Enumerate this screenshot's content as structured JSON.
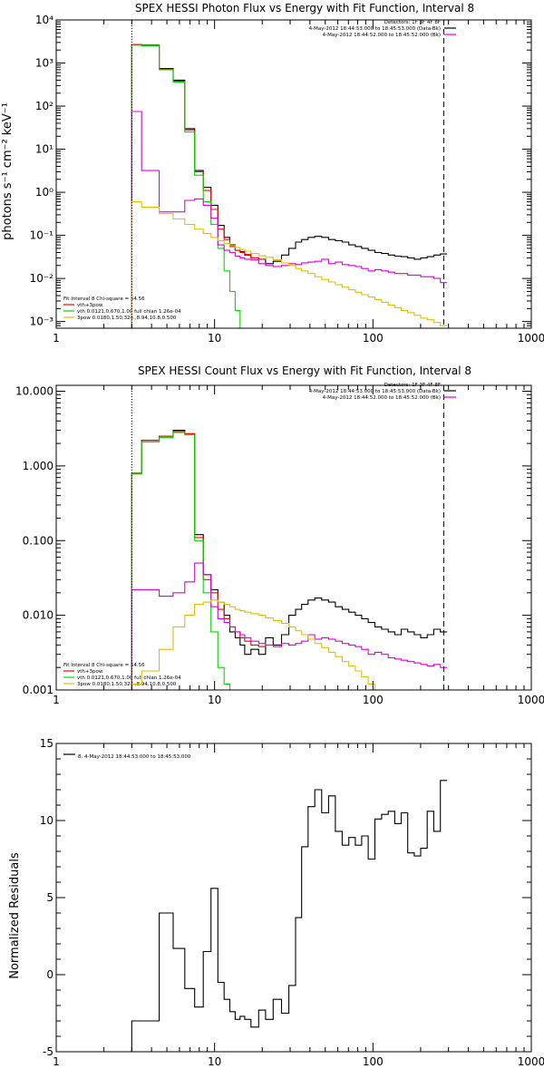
{
  "colors": {
    "data": "#000000",
    "total": "#ff0000",
    "vth": "#00dd00",
    "pow": "#e0c000",
    "bkg": "#dd00dd"
  },
  "chart_data": [
    {
      "type": "line",
      "title": "SPEX HESSI Photon Flux vs Energy with Fit Function, Interval 8",
      "ylabel": "photons s⁻¹ cm⁻² keV⁻¹",
      "xlabel": "",
      "xscale": "log",
      "yscale": "log",
      "xlim": [
        1,
        1000
      ],
      "ylim": [
        0.0007,
        10000
      ],
      "xticks": [
        1,
        10,
        100,
        1000
      ],
      "xticklabels": [
        "1",
        "10",
        "100",
        "1000"
      ],
      "yticks": [
        0.001,
        0.01,
        0.1,
        1,
        10,
        100,
        1000,
        10000
      ],
      "yticklabels": [
        "10⁻³",
        "10⁻²",
        "10⁻¹",
        "10⁰",
        "10¹",
        "10²",
        "10³",
        "10⁴"
      ],
      "vlines": [
        {
          "x": 3,
          "style": "dotted"
        },
        {
          "x": 280,
          "style": "dashed"
        }
      ],
      "legend_upper": {
        "header": "Detectors: 1F 3F 4F 8F",
        "entries": [
          {
            "text": "4-May-2012 18:44:53.000 to 18:45:53.000 (Data-Bk)",
            "color": "#000000"
          },
          {
            "text": "4-May-2012 18:44:52.000 to 18:45:52.000 (Bk)",
            "color": "#dd00dd"
          }
        ]
      },
      "legend_lower": {
        "header": "Fit Interval 8   Chi-square = 54.56",
        "entries": [
          {
            "text": "vth+3pow",
            "color": "#ff0000"
          },
          {
            "text": "vth 0.0121,0.670,1.00  full chian 1.26e-04",
            "color": "#00dd00"
          },
          {
            "text": "3pow 0.0180,1.50,324.,8.94,10.8,0.500",
            "color": "#e0c000"
          }
        ]
      },
      "series": [
        {
          "color": "#000000",
          "x": [
            3,
            4,
            5,
            6,
            7,
            8,
            9,
            10,
            11,
            12,
            13,
            14,
            15,
            16,
            18,
            20,
            22,
            25,
            28,
            31,
            34,
            37,
            41,
            45,
            50,
            55,
            61,
            67,
            74,
            81,
            89,
            98,
            108,
            119,
            131,
            144,
            158,
            174,
            191,
            210,
            231,
            254,
            280
          ],
          "y": [
            2700,
            2600,
            750,
            400,
            30,
            3.2,
            1.3,
            0.5,
            0.17,
            0.09,
            0.06,
            0.045,
            0.042,
            0.035,
            0.03,
            0.028,
            0.022,
            0.025,
            0.035,
            0.05,
            0.07,
            0.08,
            0.09,
            0.095,
            0.09,
            0.08,
            0.075,
            0.07,
            0.06,
            0.055,
            0.05,
            0.045,
            0.04,
            0.038,
            0.035,
            0.033,
            0.032,
            0.03,
            0.028,
            0.03,
            0.032,
            0.035,
            0.037
          ]
        },
        {
          "color": "#ff0000",
          "x": [
            3,
            4,
            5,
            6,
            7,
            8,
            9,
            10,
            11,
            12,
            13,
            14,
            15,
            16,
            18,
            20
          ],
          "y": [
            2700,
            2600,
            720,
            380,
            28,
            3.0,
            1.1,
            0.4,
            0.14,
            0.08,
            0.055,
            0.045,
            0.04,
            0.036,
            0.03,
            0.028
          ]
        },
        {
          "color": "#00dd00",
          "x": [
            3,
            4,
            5,
            6,
            7,
            8,
            9,
            10,
            11,
            12,
            13,
            14,
            15
          ],
          "y": [
            2600,
            2500,
            700,
            360,
            25,
            2.5,
            0.6,
            0.18,
            0.05,
            0.015,
            0.005,
            0.0018,
            0.0007
          ]
        },
        {
          "color": "#dd00dd",
          "x": [
            3,
            4,
            5,
            6,
            7,
            8,
            9,
            10,
            11,
            12,
            13,
            14,
            15,
            16,
            18,
            20,
            22,
            25,
            28,
            31,
            34,
            37,
            41,
            45,
            50,
            55,
            61,
            67,
            74,
            81,
            89,
            98,
            108,
            119,
            131,
            144,
            158,
            174,
            191,
            210,
            231,
            254,
            280
          ],
          "y": [
            75,
            3.2,
            0.35,
            0.35,
            0.65,
            0.7,
            0.5,
            0.25,
            0.06,
            0.045,
            0.04,
            0.033,
            0.03,
            0.028,
            0.027,
            0.022,
            0.02,
            0.019,
            0.02,
            0.022,
            0.021,
            0.023,
            0.024,
            0.025,
            0.028,
            0.022,
            0.024,
            0.021,
            0.02,
            0.019,
            0.017,
            0.015,
            0.016,
            0.015,
            0.014,
            0.013,
            0.013,
            0.012,
            0.012,
            0.011,
            0.011,
            0.01,
            0.008
          ]
        },
        {
          "color": "#e0c000",
          "x": [
            3,
            4,
            5,
            6,
            7,
            8,
            9,
            10,
            11,
            12,
            13,
            14,
            15,
            16,
            18,
            20,
            22,
            25,
            28,
            31,
            34,
            37,
            41,
            45,
            50,
            55,
            61,
            67,
            74,
            81,
            89,
            98,
            108,
            119,
            131,
            144,
            158,
            174,
            191,
            210,
            231,
            254,
            280
          ],
          "y": [
            0.6,
            0.45,
            0.32,
            0.24,
            0.18,
            0.14,
            0.11,
            0.09,
            0.075,
            0.065,
            0.058,
            0.052,
            0.047,
            0.043,
            0.038,
            0.034,
            0.031,
            0.027,
            0.023,
            0.02,
            0.017,
            0.015,
            0.013,
            0.011,
            0.0095,
            0.0083,
            0.0072,
            0.0063,
            0.0055,
            0.0048,
            0.0042,
            0.0037,
            0.0032,
            0.0028,
            0.0024,
            0.0021,
            0.0018,
            0.0016,
            0.0014,
            0.0012,
            0.0011,
            0.00095,
            0.0008
          ]
        }
      ]
    },
    {
      "type": "line",
      "title": "SPEX HESSI Count Flux vs Energy with Fit Function, Interval 8",
      "xlabel": "",
      "ylabel": "",
      "xscale": "log",
      "yscale": "log",
      "xlim": [
        1,
        1000
      ],
      "ylim": [
        0.001,
        12
      ],
      "xticks": [
        1,
        10,
        100,
        1000
      ],
      "xticklabels": [
        "1",
        "10",
        "100",
        "1000"
      ],
      "yticks": [
        0.001,
        0.01,
        0.1,
        1,
        10
      ],
      "yticklabels": [
        "0.001",
        "0.010",
        "0.100",
        "1.000",
        "10.000"
      ],
      "vlines": [
        {
          "x": 3,
          "style": "dotted"
        },
        {
          "x": 280,
          "style": "dashed"
        }
      ],
      "legend_upper": {
        "header": "Detectors: 1F 3F 4F 8F",
        "entries": [
          {
            "text": "4-May-2012 18:44:53.000 to 18:45:53.000 (Data-Bk)",
            "color": "#000000"
          },
          {
            "text": "4-May-2012 18:44:52.000 to 18:45:52.000 (Bk)",
            "color": "#dd00dd"
          }
        ]
      },
      "legend_lower": {
        "header": "Fit Interval 8   Chi-square = 54.56",
        "entries": [
          {
            "text": "vth+3pow",
            "color": "#ff0000"
          },
          {
            "text": "vth 0.0121,0.670,1.00  full chian 1.26e-04",
            "color": "#00dd00"
          },
          {
            "text": "3pow 0.0180,1.50,324.,8.94,10.8,0.500",
            "color": "#e0c000"
          }
        ]
      },
      "series": [
        {
          "color": "#000000",
          "x": [
            3,
            4,
            5,
            6,
            7,
            8,
            9,
            10,
            11,
            12,
            13,
            14,
            15,
            16,
            18,
            20,
            22,
            25,
            28,
            31,
            34,
            37,
            41,
            45,
            50,
            55,
            61,
            67,
            74,
            81,
            89,
            98,
            108,
            119,
            131,
            144,
            158,
            174,
            191,
            210,
            231,
            254,
            280
          ],
          "y": [
            0.8,
            2.2,
            2.5,
            3.0,
            2.7,
            0.12,
            0.035,
            0.022,
            0.015,
            0.01,
            0.006,
            0.005,
            0.004,
            0.003,
            0.0035,
            0.003,
            0.005,
            0.004,
            0.0055,
            0.01,
            0.012,
            0.014,
            0.016,
            0.017,
            0.016,
            0.015,
            0.013,
            0.012,
            0.011,
            0.01,
            0.009,
            0.008,
            0.007,
            0.0065,
            0.006,
            0.0055,
            0.0065,
            0.006,
            0.0055,
            0.005,
            0.0055,
            0.0065,
            0.006
          ]
        },
        {
          "color": "#ff0000",
          "x": [
            3,
            4,
            5,
            6,
            7,
            8,
            9,
            10,
            11,
            12,
            13,
            14,
            15,
            16,
            18,
            20
          ],
          "y": [
            0.8,
            2.2,
            2.5,
            2.9,
            2.7,
            0.11,
            0.03,
            0.02,
            0.012,
            0.009,
            0.007,
            0.006,
            0.005,
            0.0045,
            0.004,
            0.0038
          ]
        },
        {
          "color": "#00dd00",
          "x": [
            3,
            4,
            5,
            6,
            7,
            8,
            9,
            10,
            11,
            12,
            13,
            14
          ],
          "y": [
            0.78,
            2.1,
            2.4,
            2.8,
            2.6,
            0.1,
            0.02,
            0.006,
            0.002,
            0.0012,
            0.001,
            0.0009
          ]
        },
        {
          "color": "#dd00dd",
          "x": [
            3,
            4,
            5,
            6,
            7,
            8,
            9,
            10,
            11,
            12,
            13,
            14,
            15,
            16,
            18,
            20,
            22,
            25,
            28,
            31,
            34,
            37,
            41,
            45,
            50,
            55,
            61,
            67,
            74,
            81,
            89,
            98,
            108,
            119,
            131,
            144,
            158,
            174,
            191,
            210,
            231,
            254,
            280
          ],
          "y": [
            0.022,
            0.022,
            0.018,
            0.02,
            0.028,
            0.05,
            0.035,
            0.013,
            0.009,
            0.008,
            0.007,
            0.006,
            0.0055,
            0.005,
            0.0045,
            0.0042,
            0.004,
            0.0038,
            0.0042,
            0.004,
            0.0042,
            0.0045,
            0.0055,
            0.0048,
            0.005,
            0.0048,
            0.0045,
            0.0042,
            0.004,
            0.0038,
            0.0035,
            0.003,
            0.0032,
            0.003,
            0.0027,
            0.0026,
            0.0025,
            0.0024,
            0.0023,
            0.0022,
            0.0021,
            0.0022,
            0.002
          ]
        },
        {
          "color": "#e0c000",
          "x": [
            3,
            4,
            5,
            6,
            7,
            8,
            9,
            10,
            11,
            12,
            13,
            14,
            15,
            16,
            18,
            20,
            22,
            25,
            28,
            31,
            34,
            37,
            41,
            45,
            50,
            55,
            61,
            67,
            74,
            81,
            89,
            98,
            108
          ],
          "y": [
            0.0012,
            0.0018,
            0.0035,
            0.007,
            0.01,
            0.014,
            0.015,
            0.016,
            0.015,
            0.014,
            0.013,
            0.012,
            0.0115,
            0.011,
            0.0105,
            0.01,
            0.0092,
            0.0085,
            0.0078,
            0.007,
            0.0062,
            0.0055,
            0.0048,
            0.0042,
            0.0037,
            0.0032,
            0.0028,
            0.0024,
            0.0021,
            0.0018,
            0.0015,
            0.0012,
            0.001
          ]
        }
      ]
    },
    {
      "type": "line",
      "title": "",
      "xlabel": "",
      "ylabel": "Normalized Residuals",
      "xscale": "log",
      "yscale": "linear",
      "xlim": [
        1,
        1000
      ],
      "ylim": [
        -5,
        15
      ],
      "xticks": [
        1,
        10,
        100,
        1000
      ],
      "xticklabels": [
        "1",
        "10",
        "100",
        "1000"
      ],
      "yticks": [
        -5,
        0,
        5,
        10,
        15
      ],
      "yticklabels": [
        "-5",
        "0",
        "5",
        "10",
        "15"
      ],
      "legend_upper": {
        "header": "",
        "entries": [
          {
            "text": "8. 4-May-2012 18:44:53.000 to 18:45:53.000",
            "color": "#000000"
          }
        ]
      },
      "series": [
        {
          "color": "#000000",
          "x": [
            3,
            4,
            5,
            6,
            7,
            8,
            9,
            10,
            11,
            12,
            13,
            14,
            15,
            16,
            18,
            20,
            22,
            25,
            28,
            31,
            34,
            37,
            41,
            45,
            50,
            55,
            61,
            67,
            74,
            81,
            89,
            98,
            108,
            119,
            131,
            144,
            158,
            174,
            191,
            210,
            231,
            254,
            280
          ],
          "y": [
            -3,
            -3,
            4,
            1.7,
            -0.9,
            -2.1,
            1.5,
            5.6,
            -0.5,
            -1.6,
            -2.4,
            -2.9,
            -2.7,
            -2.9,
            -3.4,
            -2.3,
            -2.9,
            -1.6,
            -2.5,
            -0.7,
            3.7,
            8.3,
            10.9,
            12,
            10.5,
            11.6,
            9.3,
            8.4,
            8.9,
            8.4,
            9,
            7.5,
            10.1,
            10.4,
            10.6,
            9.8,
            10.5,
            7.9,
            7.7,
            8.2,
            10.6,
            9.3,
            12.6
          ]
        }
      ]
    }
  ]
}
